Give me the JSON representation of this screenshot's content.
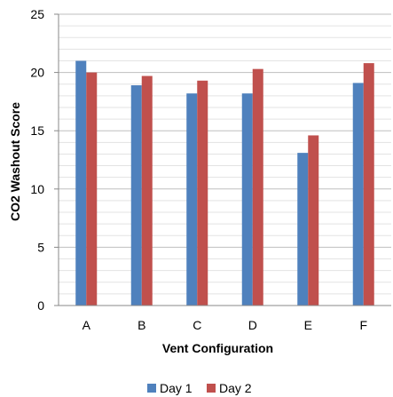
{
  "chart_data": {
    "type": "bar",
    "categories": [
      "A",
      "B",
      "C",
      "D",
      "E",
      "F"
    ],
    "series": [
      {
        "name": "Day 1",
        "values": [
          21.0,
          18.9,
          18.2,
          18.2,
          13.1,
          19.1
        ],
        "color": "#4F81BD"
      },
      {
        "name": "Day 2",
        "values": [
          20.0,
          19.7,
          19.3,
          20.3,
          14.6,
          20.8
        ],
        "color": "#C0504D"
      }
    ],
    "xlabel": "Vent Configuration",
    "ylabel": "CO2 Washout Score",
    "ylim": [
      0,
      25
    ],
    "yticks": [
      "0",
      "5",
      "10",
      "15",
      "20",
      "25"
    ],
    "grid": true,
    "legend_position": "bottom"
  }
}
